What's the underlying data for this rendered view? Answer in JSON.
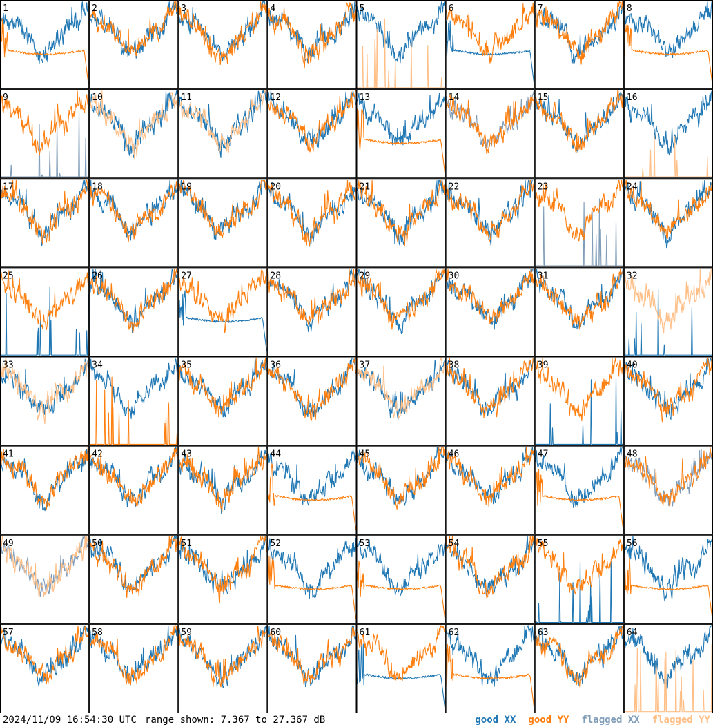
{
  "footer": {
    "timestamp": "2024/11/09 16:54:30 UTC",
    "range_text": "range shown: 7.367 to 27.367 dB"
  },
  "legend": [
    {
      "label": "good XX",
      "color": "#1f77b4"
    },
    {
      "label": "good YY",
      "color": "#ff7f0e"
    },
    {
      "label": "flagged XX",
      "color": "#7f9cb8"
    },
    {
      "label": "flagged YY",
      "color": "#ffbf87"
    }
  ],
  "chart_data": {
    "type": "line",
    "grid": "8x8 small multiples",
    "y_range_db": [
      7.367,
      27.367
    ],
    "x_ticks": "none",
    "panels": [
      {
        "id": "1",
        "xx": "good",
        "yy": "good",
        "yy_flat": true
      },
      {
        "id": "2",
        "xx": "good",
        "yy": "good"
      },
      {
        "id": "3",
        "xx": "good",
        "yy": "good"
      },
      {
        "id": "4",
        "xx": "good",
        "yy": "good"
      },
      {
        "id": "5",
        "xx": "good",
        "yy": "flagged",
        "yy_spiky": true
      },
      {
        "id": "6",
        "xx": "good",
        "yy": "good",
        "xx_flat": true
      },
      {
        "id": "7",
        "xx": "good",
        "yy": "good"
      },
      {
        "id": "8",
        "xx": "good",
        "yy": "good",
        "yy_flat": true
      },
      {
        "id": "9",
        "xx": "flagged",
        "yy": "good",
        "xx_spiky": true
      },
      {
        "id": "10",
        "xx": "good",
        "yy": "flagged"
      },
      {
        "id": "11",
        "xx": "good",
        "yy": "flagged"
      },
      {
        "id": "12",
        "xx": "good",
        "yy": "good"
      },
      {
        "id": "13",
        "xx": "good",
        "yy": "good",
        "yy_flat": true
      },
      {
        "id": "14",
        "xx": "flagged",
        "yy": "good"
      },
      {
        "id": "15",
        "xx": "good",
        "yy": "good"
      },
      {
        "id": "16",
        "xx": "good",
        "yy": "flagged",
        "yy_spiky": true
      },
      {
        "id": "17",
        "xx": "good",
        "yy": "good"
      },
      {
        "id": "18",
        "xx": "good",
        "yy": "good"
      },
      {
        "id": "19",
        "xx": "good",
        "yy": "good"
      },
      {
        "id": "20",
        "xx": "good",
        "yy": "good"
      },
      {
        "id": "21",
        "xx": "good",
        "yy": "good"
      },
      {
        "id": "22",
        "xx": "good",
        "yy": "good"
      },
      {
        "id": "23",
        "xx": "flagged",
        "yy": "good",
        "xx_spiky": true
      },
      {
        "id": "24",
        "xx": "good",
        "yy": "good"
      },
      {
        "id": "25",
        "xx": "good",
        "yy": "good",
        "xx_spiky": true
      },
      {
        "id": "26",
        "xx": "good",
        "yy": "good"
      },
      {
        "id": "27",
        "xx": "good",
        "yy": "good",
        "xx_flat": true
      },
      {
        "id": "28",
        "xx": "good",
        "yy": "good"
      },
      {
        "id": "29",
        "xx": "good",
        "yy": "good"
      },
      {
        "id": "30",
        "xx": "good",
        "yy": "good"
      },
      {
        "id": "31",
        "xx": "good",
        "yy": "good"
      },
      {
        "id": "32",
        "xx": "good",
        "yy": "flagged",
        "xx_spiky": true
      },
      {
        "id": "33",
        "xx": "good",
        "yy": "flagged"
      },
      {
        "id": "34",
        "xx": "good",
        "yy": "good",
        "yy_spiky": true
      },
      {
        "id": "35",
        "xx": "good",
        "yy": "good"
      },
      {
        "id": "36",
        "xx": "good",
        "yy": "good"
      },
      {
        "id": "37",
        "xx": "good",
        "yy": "flagged"
      },
      {
        "id": "38",
        "xx": "good",
        "yy": "good"
      },
      {
        "id": "39",
        "xx": "good",
        "yy": "good",
        "xx_spiky": true
      },
      {
        "id": "40",
        "xx": "good",
        "yy": "good"
      },
      {
        "id": "41",
        "xx": "good",
        "yy": "good"
      },
      {
        "id": "42",
        "xx": "good",
        "yy": "good"
      },
      {
        "id": "43",
        "xx": "good",
        "yy": "good"
      },
      {
        "id": "44",
        "xx": "good",
        "yy": "good",
        "yy_flat": true
      },
      {
        "id": "45",
        "xx": "good",
        "yy": "good"
      },
      {
        "id": "46",
        "xx": "good",
        "yy": "good"
      },
      {
        "id": "47",
        "xx": "good",
        "yy": "good",
        "yy_flat": true
      },
      {
        "id": "48",
        "xx": "flagged",
        "yy": "good"
      },
      {
        "id": "49",
        "xx": "flagged",
        "yy": "flagged"
      },
      {
        "id": "50",
        "xx": "good",
        "yy": "good"
      },
      {
        "id": "51",
        "xx": "good",
        "yy": "good"
      },
      {
        "id": "52",
        "xx": "good",
        "yy": "good",
        "yy_flat": true
      },
      {
        "id": "53",
        "xx": "good",
        "yy": "good",
        "yy_flat": true
      },
      {
        "id": "54",
        "xx": "good",
        "yy": "good"
      },
      {
        "id": "55",
        "xx": "good",
        "yy": "good",
        "xx_spiky": true
      },
      {
        "id": "56",
        "xx": "good",
        "yy": "good",
        "yy_flat": true
      },
      {
        "id": "57",
        "xx": "good",
        "yy": "good"
      },
      {
        "id": "58",
        "xx": "good",
        "yy": "good"
      },
      {
        "id": "59",
        "xx": "good",
        "yy": "good"
      },
      {
        "id": "60",
        "xx": "good",
        "yy": "good"
      },
      {
        "id": "61",
        "xx": "good",
        "yy": "good",
        "xx_flat": true
      },
      {
        "id": "62",
        "xx": "good",
        "yy": "good",
        "yy_flat": true
      },
      {
        "id": "63",
        "xx": "good",
        "yy": "good"
      },
      {
        "id": "64",
        "xx": "good",
        "yy": "flagged",
        "yy_spiky": true
      }
    ]
  }
}
